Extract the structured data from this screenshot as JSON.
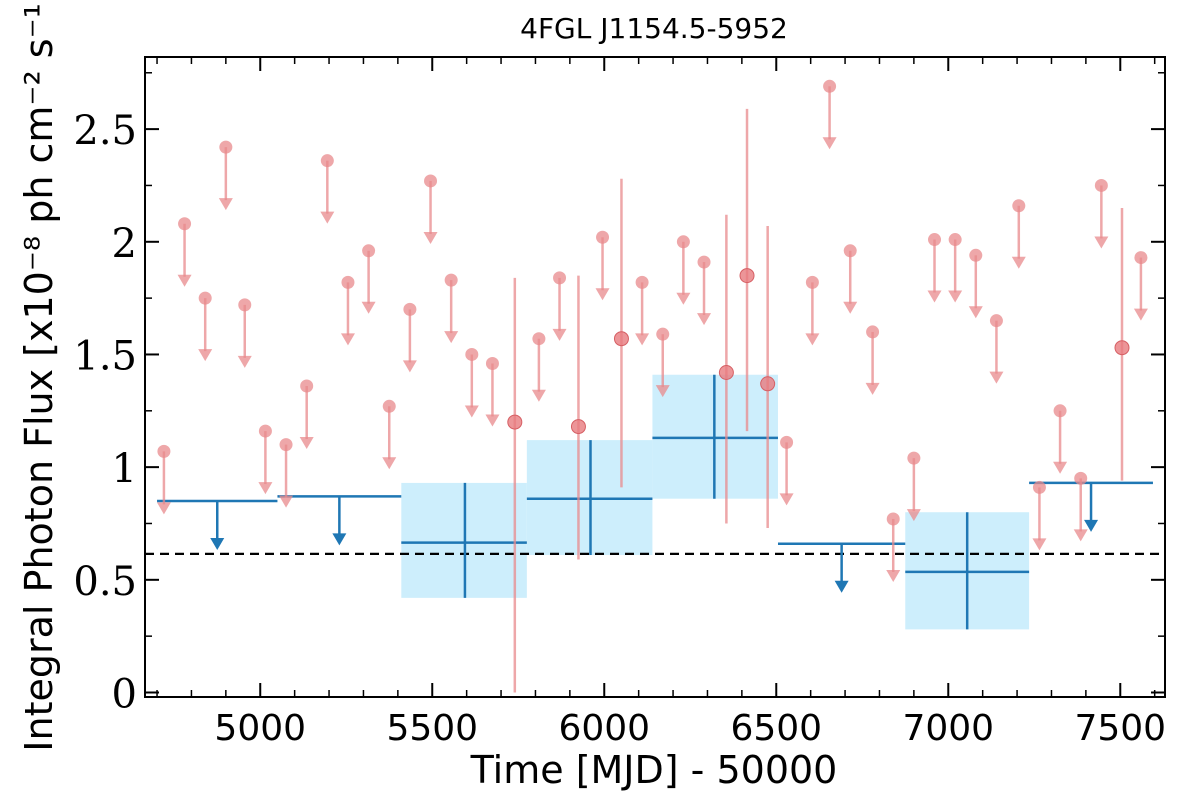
{
  "chart_data": {
    "type": "scatter",
    "title": "4FGL J1154.5-5952",
    "xlabel": "Time [MJD] - 50000",
    "ylabel": "Integral Photon Flux [x10⁻⁸ ph cm⁻² s⁻¹]",
    "xlim": [
      4665,
      7630
    ],
    "ylim": [
      -0.02,
      2.82
    ],
    "xticks": [
      5000,
      5500,
      6000,
      6500,
      7000,
      7500
    ],
    "xtick_labels": [
      "5000",
      "5500",
      "6000",
      "6500",
      "7000",
      "7500"
    ],
    "yticks": [
      0,
      0.5,
      1,
      1.5,
      2,
      2.5
    ],
    "ytick_labels": [
      "0",
      "0.5",
      "1",
      "1.5",
      "2",
      "2.5"
    ],
    "reference_line": {
      "y": 0.615,
      "style": "dashed",
      "color": "#000000"
    },
    "colors": {
      "fine_bins": "#e8898c",
      "coarse_bins": "#1f77b4",
      "coarse_band": "#cdeefc",
      "axes": "#000000"
    },
    "series": [
      {
        "role": "fine-bin upper limits",
        "points": [
          {
            "x": 4720,
            "y": 1.07
          },
          {
            "x": 4780,
            "y": 2.08
          },
          {
            "x": 4840,
            "y": 1.75
          },
          {
            "x": 4900,
            "y": 2.42
          },
          {
            "x": 4955,
            "y": 1.72
          },
          {
            "x": 5015,
            "y": 1.16
          },
          {
            "x": 5075,
            "y": 1.1
          },
          {
            "x": 5135,
            "y": 1.36
          },
          {
            "x": 5195,
            "y": 2.36
          },
          {
            "x": 5255,
            "y": 1.82
          },
          {
            "x": 5315,
            "y": 1.96
          },
          {
            "x": 5375,
            "y": 1.27
          },
          {
            "x": 5435,
            "y": 1.7
          },
          {
            "x": 5495,
            "y": 2.27
          },
          {
            "x": 5555,
            "y": 1.83
          },
          {
            "x": 5615,
            "y": 1.5
          },
          {
            "x": 5675,
            "y": 1.46
          },
          {
            "x": 5810,
            "y": 1.57
          },
          {
            "x": 5870,
            "y": 1.84
          },
          {
            "x": 5995,
            "y": 2.02
          },
          {
            "x": 6110,
            "y": 1.82
          },
          {
            "x": 6170,
            "y": 1.59
          },
          {
            "x": 6230,
            "y": 2.0
          },
          {
            "x": 6290,
            "y": 1.91
          },
          {
            "x": 6530,
            "y": 1.11
          },
          {
            "x": 6605,
            "y": 1.82
          },
          {
            "x": 6655,
            "y": 2.69
          },
          {
            "x": 6715,
            "y": 1.96
          },
          {
            "x": 6780,
            "y": 1.6
          },
          {
            "x": 6840,
            "y": 0.77
          },
          {
            "x": 6900,
            "y": 1.04
          },
          {
            "x": 6960,
            "y": 2.01
          },
          {
            "x": 7020,
            "y": 2.01
          },
          {
            "x": 7080,
            "y": 1.94
          },
          {
            "x": 7140,
            "y": 1.65
          },
          {
            "x": 7205,
            "y": 2.16
          },
          {
            "x": 7265,
            "y": 0.91
          },
          {
            "x": 7325,
            "y": 1.25
          },
          {
            "x": 7385,
            "y": 0.95
          },
          {
            "x": 7445,
            "y": 2.25
          },
          {
            "x": 7560,
            "y": 1.93
          }
        ]
      },
      {
        "role": "fine-bin detections",
        "points": [
          {
            "x": 5740,
            "y": 1.2,
            "yerr_low": 0.0,
            "yerr_high": 1.84
          },
          {
            "x": 5925,
            "y": 1.18,
            "yerr_low": 0.59,
            "yerr_high": 1.85
          },
          {
            "x": 6050,
            "y": 1.57,
            "yerr_low": 0.91,
            "yerr_high": 2.28
          },
          {
            "x": 6355,
            "y": 1.42,
            "yerr_low": 0.75,
            "yerr_high": 2.12
          },
          {
            "x": 6415,
            "y": 1.85,
            "yerr_low": 1.16,
            "yerr_high": 2.59
          },
          {
            "x": 6475,
            "y": 1.37,
            "yerr_low": 0.73,
            "yerr_high": 2.07
          },
          {
            "x": 7505,
            "y": 1.53,
            "yerr_low": 0.94,
            "yerr_high": 2.15
          }
        ]
      },
      {
        "role": "coarse-bin upper limits",
        "points": [
          {
            "x_start": 4700,
            "x_end": 5050,
            "y": 0.85
          },
          {
            "x_start": 5050,
            "x_end": 5410,
            "y": 0.87
          },
          {
            "x_start": 6505,
            "x_end": 6875,
            "y": 0.66
          },
          {
            "x_start": 7235,
            "x_end": 7595,
            "y": 0.93
          }
        ]
      },
      {
        "role": "coarse-bin detections",
        "points": [
          {
            "x_start": 5410,
            "x_end": 5775,
            "x": 5595,
            "y": 0.665,
            "y_low": 0.42,
            "y_high": 0.93
          },
          {
            "x_start": 5775,
            "x_end": 6140,
            "x": 5960,
            "y": 0.86,
            "y_low": 0.61,
            "y_high": 1.12
          },
          {
            "x_start": 6140,
            "x_end": 6505,
            "x": 6320,
            "y": 1.13,
            "y_low": 0.86,
            "y_high": 1.41
          },
          {
            "x_start": 6875,
            "x_end": 7235,
            "x": 7055,
            "y": 0.535,
            "y_low": 0.28,
            "y_high": 0.8
          }
        ]
      }
    ]
  }
}
